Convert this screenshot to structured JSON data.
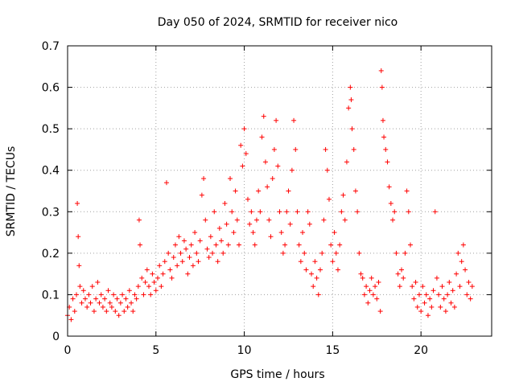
{
  "chart_data": {
    "type": "scatter",
    "title": "Day 050 of 2024, SRMTID for receiver nico",
    "xlabel": "GPS time / hours",
    "ylabel": "SRMTID / TECUs",
    "xlim": [
      0,
      24
    ],
    "ylim": [
      0,
      0.7
    ],
    "xticks": [
      0,
      5,
      10,
      15,
      20
    ],
    "xtick_labels": [
      "0",
      "5",
      "10",
      "15",
      "20"
    ],
    "yticks": [
      0,
      0.1,
      0.2,
      0.3,
      0.4,
      0.5,
      0.6,
      0.7
    ],
    "ytick_labels": [
      "0",
      "0.1",
      "0.2",
      "0.3",
      "0.4",
      "0.5",
      "0.6",
      "0.7"
    ],
    "grid": true,
    "marker": "+",
    "marker_color": "#ff0000",
    "series": [
      {
        "name": "SRMTID",
        "points": [
          [
            0.0,
            0.05
          ],
          [
            0.1,
            0.07
          ],
          [
            0.2,
            0.04
          ],
          [
            0.3,
            0.09
          ],
          [
            0.4,
            0.06
          ],
          [
            0.5,
            0.1
          ],
          [
            0.55,
            0.32
          ],
          [
            0.6,
            0.24
          ],
          [
            0.65,
            0.17
          ],
          [
            0.7,
            0.12
          ],
          [
            0.8,
            0.08
          ],
          [
            0.9,
            0.11
          ],
          [
            1.0,
            0.09
          ],
          [
            1.1,
            0.07
          ],
          [
            1.2,
            0.1
          ],
          [
            1.3,
            0.08
          ],
          [
            1.4,
            0.12
          ],
          [
            1.5,
            0.06
          ],
          [
            1.6,
            0.09
          ],
          [
            1.7,
            0.13
          ],
          [
            1.8,
            0.08
          ],
          [
            1.9,
            0.1
          ],
          [
            2.0,
            0.07
          ],
          [
            2.1,
            0.09
          ],
          [
            2.2,
            0.06
          ],
          [
            2.3,
            0.11
          ],
          [
            2.4,
            0.08
          ],
          [
            2.5,
            0.07
          ],
          [
            2.6,
            0.1
          ],
          [
            2.7,
            0.06
          ],
          [
            2.8,
            0.09
          ],
          [
            2.9,
            0.05
          ],
          [
            3.0,
            0.08
          ],
          [
            3.1,
            0.1
          ],
          [
            3.2,
            0.06
          ],
          [
            3.3,
            0.09
          ],
          [
            3.4,
            0.07
          ],
          [
            3.5,
            0.11
          ],
          [
            3.6,
            0.08
          ],
          [
            3.7,
            0.06
          ],
          [
            3.8,
            0.1
          ],
          [
            3.9,
            0.09
          ],
          [
            4.0,
            0.12
          ],
          [
            4.05,
            0.28
          ],
          [
            4.1,
            0.22
          ],
          [
            4.2,
            0.14
          ],
          [
            4.3,
            0.1
          ],
          [
            4.4,
            0.13
          ],
          [
            4.5,
            0.16
          ],
          [
            4.6,
            0.12
          ],
          [
            4.7,
            0.1
          ],
          [
            4.8,
            0.15
          ],
          [
            4.9,
            0.13
          ],
          [
            5.0,
            0.11
          ],
          [
            5.1,
            0.14
          ],
          [
            5.2,
            0.17
          ],
          [
            5.3,
            0.12
          ],
          [
            5.4,
            0.15
          ],
          [
            5.5,
            0.18
          ],
          [
            5.6,
            0.37
          ],
          [
            5.7,
            0.2
          ],
          [
            5.8,
            0.16
          ],
          [
            5.9,
            0.14
          ],
          [
            6.0,
            0.19
          ],
          [
            6.1,
            0.22
          ],
          [
            6.2,
            0.17
          ],
          [
            6.3,
            0.24
          ],
          [
            6.4,
            0.2
          ],
          [
            6.5,
            0.18
          ],
          [
            6.6,
            0.23
          ],
          [
            6.7,
            0.21
          ],
          [
            6.8,
            0.15
          ],
          [
            6.9,
            0.19
          ],
          [
            7.0,
            0.22
          ],
          [
            7.1,
            0.17
          ],
          [
            7.2,
            0.25
          ],
          [
            7.3,
            0.2
          ],
          [
            7.4,
            0.18
          ],
          [
            7.5,
            0.23
          ],
          [
            7.6,
            0.34
          ],
          [
            7.7,
            0.38
          ],
          [
            7.8,
            0.28
          ],
          [
            7.9,
            0.21
          ],
          [
            8.0,
            0.19
          ],
          [
            8.1,
            0.24
          ],
          [
            8.2,
            0.2
          ],
          [
            8.3,
            0.3
          ],
          [
            8.4,
            0.22
          ],
          [
            8.5,
            0.18
          ],
          [
            8.6,
            0.26
          ],
          [
            8.7,
            0.23
          ],
          [
            8.8,
            0.2
          ],
          [
            8.9,
            0.32
          ],
          [
            9.0,
            0.27
          ],
          [
            9.1,
            0.22
          ],
          [
            9.2,
            0.38
          ],
          [
            9.3,
            0.3
          ],
          [
            9.4,
            0.25
          ],
          [
            9.5,
            0.35
          ],
          [
            9.6,
            0.28
          ],
          [
            9.7,
            0.22
          ],
          [
            9.8,
            0.46
          ],
          [
            9.9,
            0.41
          ],
          [
            10.0,
            0.5
          ],
          [
            10.1,
            0.44
          ],
          [
            10.2,
            0.33
          ],
          [
            10.3,
            0.27
          ],
          [
            10.4,
            0.3
          ],
          [
            10.5,
            0.25
          ],
          [
            10.6,
            0.22
          ],
          [
            10.7,
            0.28
          ],
          [
            10.8,
            0.35
          ],
          [
            10.9,
            0.3
          ],
          [
            11.0,
            0.48
          ],
          [
            11.1,
            0.53
          ],
          [
            11.2,
            0.42
          ],
          [
            11.3,
            0.36
          ],
          [
            11.4,
            0.28
          ],
          [
            11.5,
            0.24
          ],
          [
            11.6,
            0.38
          ],
          [
            11.7,
            0.45
          ],
          [
            11.8,
            0.52
          ],
          [
            11.9,
            0.41
          ],
          [
            12.0,
            0.3
          ],
          [
            12.1,
            0.25
          ],
          [
            12.2,
            0.2
          ],
          [
            12.3,
            0.22
          ],
          [
            12.4,
            0.3
          ],
          [
            12.5,
            0.35
          ],
          [
            12.6,
            0.27
          ],
          [
            12.7,
            0.4
          ],
          [
            12.8,
            0.52
          ],
          [
            12.9,
            0.45
          ],
          [
            13.0,
            0.3
          ],
          [
            13.1,
            0.22
          ],
          [
            13.2,
            0.18
          ],
          [
            13.3,
            0.25
          ],
          [
            13.4,
            0.2
          ],
          [
            13.5,
            0.16
          ],
          [
            13.6,
            0.3
          ],
          [
            13.7,
            0.27
          ],
          [
            13.8,
            0.15
          ],
          [
            13.9,
            0.12
          ],
          [
            14.0,
            0.18
          ],
          [
            14.1,
            0.14
          ],
          [
            14.2,
            0.1
          ],
          [
            14.3,
            0.16
          ],
          [
            14.4,
            0.2
          ],
          [
            14.5,
            0.28
          ],
          [
            14.6,
            0.45
          ],
          [
            14.7,
            0.4
          ],
          [
            14.8,
            0.33
          ],
          [
            14.9,
            0.22
          ],
          [
            15.0,
            0.18
          ],
          [
            15.1,
            0.25
          ],
          [
            15.2,
            0.2
          ],
          [
            15.3,
            0.16
          ],
          [
            15.4,
            0.22
          ],
          [
            15.5,
            0.3
          ],
          [
            15.6,
            0.34
          ],
          [
            15.7,
            0.28
          ],
          [
            15.8,
            0.42
          ],
          [
            15.9,
            0.55
          ],
          [
            16.0,
            0.6
          ],
          [
            16.05,
            0.57
          ],
          [
            16.1,
            0.5
          ],
          [
            16.2,
            0.45
          ],
          [
            16.3,
            0.35
          ],
          [
            16.4,
            0.3
          ],
          [
            16.5,
            0.2
          ],
          [
            16.6,
            0.15
          ],
          [
            16.7,
            0.14
          ],
          [
            16.8,
            0.1
          ],
          [
            16.9,
            0.12
          ],
          [
            17.0,
            0.08
          ],
          [
            17.1,
            0.11
          ],
          [
            17.2,
            0.14
          ],
          [
            17.3,
            0.1
          ],
          [
            17.4,
            0.12
          ],
          [
            17.5,
            0.09
          ],
          [
            17.6,
            0.13
          ],
          [
            17.7,
            0.06
          ],
          [
            17.75,
            0.64
          ],
          [
            17.8,
            0.6
          ],
          [
            17.85,
            0.52
          ],
          [
            17.9,
            0.48
          ],
          [
            18.0,
            0.45
          ],
          [
            18.1,
            0.42
          ],
          [
            18.2,
            0.36
          ],
          [
            18.3,
            0.32
          ],
          [
            18.4,
            0.28
          ],
          [
            18.5,
            0.3
          ],
          [
            18.6,
            0.2
          ],
          [
            18.7,
            0.15
          ],
          [
            18.8,
            0.12
          ],
          [
            18.9,
            0.16
          ],
          [
            19.0,
            0.14
          ],
          [
            19.1,
            0.2
          ],
          [
            19.2,
            0.35
          ],
          [
            19.3,
            0.3
          ],
          [
            19.4,
            0.22
          ],
          [
            19.5,
            0.12
          ],
          [
            19.6,
            0.09
          ],
          [
            19.7,
            0.13
          ],
          [
            19.8,
            0.07
          ],
          [
            19.9,
            0.1
          ],
          [
            20.0,
            0.06
          ],
          [
            20.1,
            0.12
          ],
          [
            20.2,
            0.08
          ],
          [
            20.3,
            0.1
          ],
          [
            20.4,
            0.05
          ],
          [
            20.5,
            0.09
          ],
          [
            20.6,
            0.07
          ],
          [
            20.7,
            0.11
          ],
          [
            20.8,
            0.3
          ],
          [
            20.9,
            0.14
          ],
          [
            21.0,
            0.1
          ],
          [
            21.1,
            0.07
          ],
          [
            21.2,
            0.12
          ],
          [
            21.3,
            0.09
          ],
          [
            21.4,
            0.06
          ],
          [
            21.5,
            0.1
          ],
          [
            21.6,
            0.13
          ],
          [
            21.7,
            0.08
          ],
          [
            21.8,
            0.11
          ],
          [
            21.9,
            0.07
          ],
          [
            22.0,
            0.15
          ],
          [
            22.1,
            0.2
          ],
          [
            22.2,
            0.12
          ],
          [
            22.3,
            0.18
          ],
          [
            22.4,
            0.22
          ],
          [
            22.5,
            0.16
          ],
          [
            22.6,
            0.1
          ],
          [
            22.7,
            0.13
          ],
          [
            22.8,
            0.09
          ],
          [
            22.9,
            0.12
          ]
        ]
      }
    ]
  }
}
